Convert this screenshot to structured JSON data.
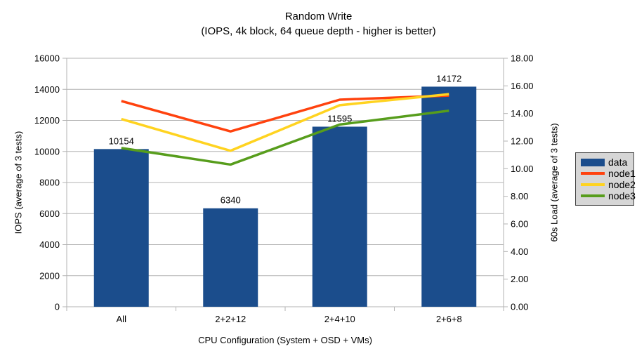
{
  "chart_data": {
    "type": "bar",
    "combo": "bars with overlaid lines (secondary axis)",
    "title": "Random Write",
    "subtitle": "(IOPS, 4k block, 64 queue depth - higher is better)",
    "categories": [
      "All",
      "2+2+12",
      "2+4+10",
      "2+6+8"
    ],
    "bar_series": {
      "name": "data",
      "color": "#1b4d8c",
      "axis": "left",
      "values": [
        10154,
        6340,
        11595,
        14172
      ],
      "data_labels": [
        "10154",
        "6340",
        "11595",
        "14172"
      ]
    },
    "line_series": [
      {
        "name": "node1",
        "color": "#ff420e",
        "axis": "right",
        "values": [
          14.9,
          12.7,
          15.0,
          15.3
        ]
      },
      {
        "name": "node2",
        "color": "#ffd320",
        "axis": "right",
        "values": [
          13.6,
          11.3,
          14.6,
          15.4
        ]
      },
      {
        "name": "node3",
        "color": "#579d1c",
        "axis": "right",
        "values": [
          11.5,
          10.3,
          13.2,
          14.2
        ]
      }
    ],
    "left_axis": {
      "title": "IOPS (average of 3 tests)",
      "min": 0,
      "max": 16000,
      "step": 2000,
      "tick_labels": [
        "0",
        "2000",
        "4000",
        "6000",
        "8000",
        "10000",
        "12000",
        "14000",
        "16000"
      ]
    },
    "right_axis": {
      "title": "60s Load (average of 3 tests)",
      "min": 0,
      "max": 18,
      "step": 2,
      "tick_labels": [
        "0.00",
        "2.00",
        "4.00",
        "6.00",
        "8.00",
        "10.00",
        "12.00",
        "14.00",
        "16.00",
        "18.00"
      ]
    },
    "x_axis": {
      "title": "CPU Configuration (System + OSD + VMs)"
    },
    "legend": {
      "position": "right",
      "entries": [
        {
          "label": "data",
          "color": "#1b4d8c",
          "type": "box"
        },
        {
          "label": "node1",
          "color": "#ff420e",
          "type": "line"
        },
        {
          "label": "node2",
          "color": "#ffd320",
          "type": "line"
        },
        {
          "label": "node3",
          "color": "#579d1c",
          "type": "line"
        }
      ]
    },
    "grid": {
      "on": true,
      "color": "#b3b3b3"
    },
    "background": "#ffffff"
  }
}
